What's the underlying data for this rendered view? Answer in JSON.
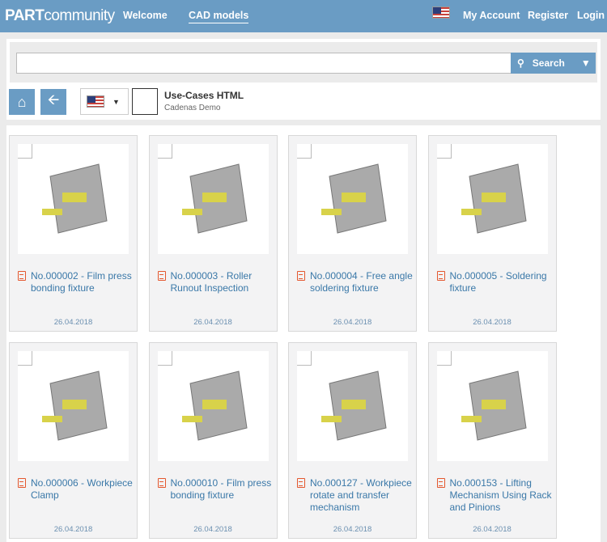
{
  "header": {
    "logo_bold": "PART",
    "logo_rest": "community",
    "nav": [
      {
        "label": "Welcome"
      },
      {
        "label": "CAD models",
        "active": true
      }
    ],
    "right": [
      {
        "label": "My Account"
      },
      {
        "label": "Register"
      },
      {
        "label": "Login"
      }
    ],
    "flag_icon": "us-flag-icon",
    "color": "#6a9cc4"
  },
  "search": {
    "value": "",
    "placeholder": "",
    "button_label": "Search"
  },
  "toolbar": {
    "title": "Use-Cases HTML",
    "subtitle": "Cadenas Demo"
  },
  "cards": [
    {
      "title": "No.000002 - Film press bonding fixture",
      "date": "26.04.2018"
    },
    {
      "title": "No.000003 - Roller Runout Inspection",
      "date": "26.04.2018"
    },
    {
      "title": "No.000004 - Free angle soldering fixture",
      "date": "26.04.2018"
    },
    {
      "title": "No.000005 - Soldering fixture",
      "date": "26.04.2018"
    },
    {
      "title": "No.000006 - Workpiece Clamp",
      "date": "26.04.2018"
    },
    {
      "title": "No.000010 - Film press bonding fixture",
      "date": "26.04.2018"
    },
    {
      "title": "No.000127 - Workpiece rotate and transfer mechanism",
      "date": "26.04.2018"
    },
    {
      "title": "No.000153 - Lifting Mechanism Using Rack and Pinions",
      "date": "26.04.2018"
    }
  ]
}
